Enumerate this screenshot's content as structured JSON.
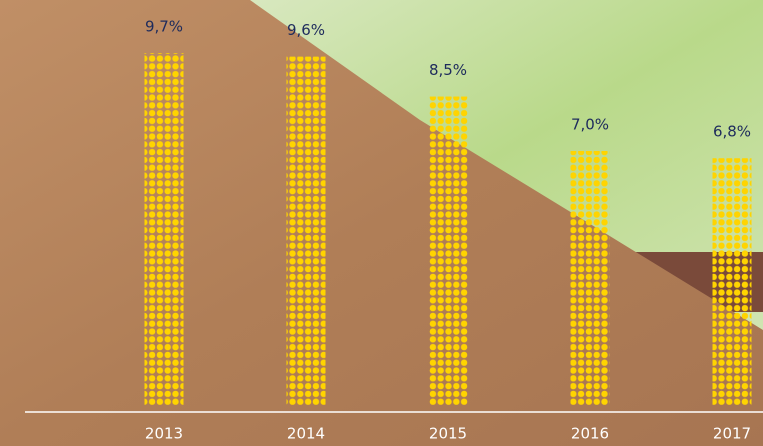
{
  "chart_data": {
    "type": "bar",
    "categories": [
      "2013",
      "2014",
      "2015",
      "2016",
      "2017"
    ],
    "values": [
      9.7,
      9.6,
      8.5,
      7.0,
      6.8
    ],
    "value_labels": [
      "9,7%",
      "9,6%",
      "8,5%",
      "7,0%",
      "6,8%"
    ],
    "color": "#ffd400"
  }
}
